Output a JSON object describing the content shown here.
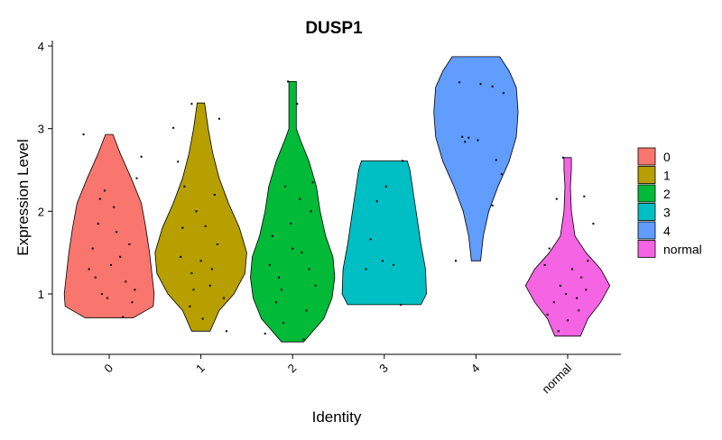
{
  "chart_data": {
    "type": "violin",
    "title": "DUSP1",
    "xlabel": "Identity",
    "ylabel": "Expression Level",
    "ylim": [
      0.25,
      4.1
    ],
    "yticks": [
      1,
      2,
      3,
      4
    ],
    "categories": [
      "0",
      "1",
      "2",
      "3",
      "4",
      "normal"
    ],
    "legend": {
      "position": "right",
      "entries": [
        "0",
        "1",
        "2",
        "3",
        "4",
        "normal"
      ]
    },
    "colors": [
      "#F8766D",
      "#B79F00",
      "#00BA38",
      "#00BFC4",
      "#619CFF",
      "#F564E3"
    ],
    "series": [
      {
        "category": "0",
        "ymin": 0.71,
        "ymax": 2.93,
        "density": [
          [
            0.71,
            0.26
          ],
          [
            0.85,
            0.48
          ],
          [
            1.0,
            0.49
          ],
          [
            1.2,
            0.47
          ],
          [
            1.5,
            0.44
          ],
          [
            1.8,
            0.4
          ],
          [
            2.1,
            0.35
          ],
          [
            2.4,
            0.24
          ],
          [
            2.7,
            0.12
          ],
          [
            2.93,
            0.04
          ]
        ],
        "points": [
          [
            0.72,
            2.93
          ],
          [
            0.88,
            1.85
          ],
          [
            0.82,
            1.55
          ],
          [
            0.95,
            2.25
          ],
          [
            1.05,
            2.05
          ],
          [
            1.12,
            1.45
          ],
          [
            1.18,
            1.15
          ],
          [
            0.78,
            1.3
          ],
          [
            0.92,
            1.0
          ],
          [
            1.25,
            0.9
          ],
          [
            1.3,
            2.4
          ],
          [
            1.35,
            2.66
          ],
          [
            1.22,
            1.6
          ],
          [
            1.08,
            1.75
          ],
          [
            0.98,
            0.95
          ],
          [
            0.85,
            1.2
          ],
          [
            1.15,
            0.72
          ],
          [
            0.9,
            2.15
          ],
          [
            1.02,
            1.35
          ],
          [
            1.28,
            1.05
          ]
        ]
      },
      {
        "category": "1",
        "ymin": 0.55,
        "ymax": 3.31,
        "density": [
          [
            0.55,
            0.1
          ],
          [
            0.8,
            0.2
          ],
          [
            1.0,
            0.36
          ],
          [
            1.25,
            0.48
          ],
          [
            1.5,
            0.5
          ],
          [
            1.8,
            0.42
          ],
          [
            2.1,
            0.3
          ],
          [
            2.4,
            0.2
          ],
          [
            2.7,
            0.13
          ],
          [
            3.0,
            0.08
          ],
          [
            3.31,
            0.04
          ]
        ],
        "points": [
          [
            1.7,
            3.01
          ],
          [
            1.9,
            3.3
          ],
          [
            2.2,
            3.12
          ],
          [
            1.82,
            2.3
          ],
          [
            1.95,
            2.0
          ],
          [
            2.05,
            1.82
          ],
          [
            2.18,
            1.6
          ],
          [
            1.78,
            1.45
          ],
          [
            1.9,
            1.25
          ],
          [
            2.1,
            1.1
          ],
          [
            2.25,
            0.95
          ],
          [
            1.88,
            0.85
          ],
          [
            2.02,
            0.7
          ],
          [
            2.28,
            0.55
          ],
          [
            1.8,
            1.8
          ],
          [
            2.15,
            2.2
          ],
          [
            1.75,
            2.6
          ],
          [
            2.0,
            1.4
          ],
          [
            2.12,
            1.3
          ],
          [
            1.92,
            1.05
          ]
        ]
      },
      {
        "category": "2",
        "ymin": 0.42,
        "ymax": 3.57,
        "density": [
          [
            0.42,
            0.12
          ],
          [
            0.7,
            0.34
          ],
          [
            0.95,
            0.43
          ],
          [
            1.2,
            0.46
          ],
          [
            1.45,
            0.44
          ],
          [
            1.7,
            0.36
          ],
          [
            2.0,
            0.3
          ],
          [
            2.3,
            0.26
          ],
          [
            2.6,
            0.18
          ],
          [
            2.85,
            0.09
          ],
          [
            3.0,
            0.04
          ],
          [
            3.57,
            0.04
          ]
        ],
        "points": [
          [
            2.95,
            3.57
          ],
          [
            3.05,
            3.3
          ],
          [
            2.7,
            0.52
          ],
          [
            2.85,
            1.2
          ],
          [
            3.1,
            1.5
          ],
          [
            3.2,
            2.0
          ],
          [
            2.78,
            1.7
          ],
          [
            2.92,
            2.3
          ],
          [
            3.15,
            0.8
          ],
          [
            3.25,
            1.1
          ],
          [
            2.82,
            0.9
          ],
          [
            3.0,
            1.55
          ],
          [
            3.08,
            2.15
          ],
          [
            2.75,
            1.35
          ],
          [
            3.22,
            2.35
          ],
          [
            2.9,
            0.65
          ],
          [
            3.12,
            0.45
          ],
          [
            2.98,
            1.85
          ],
          [
            3.18,
            1.3
          ],
          [
            2.88,
            1.05
          ]
        ]
      },
      {
        "category": "3",
        "ymin": 0.87,
        "ymax": 2.61,
        "density": [
          [
            0.87,
            0.4
          ],
          [
            1.0,
            0.46
          ],
          [
            1.3,
            0.45
          ],
          [
            1.6,
            0.4
          ],
          [
            1.9,
            0.36
          ],
          [
            2.2,
            0.32
          ],
          [
            2.5,
            0.28
          ],
          [
            2.61,
            0.25
          ]
        ],
        "points": [
          [
            4.2,
            2.61
          ],
          [
            3.92,
            2.12
          ],
          [
            3.85,
            1.66
          ],
          [
            3.98,
            1.4
          ],
          [
            4.1,
            1.35
          ],
          [
            3.8,
            1.3
          ],
          [
            4.18,
            0.87
          ],
          [
            4.02,
            2.3
          ]
        ]
      },
      {
        "category": "4",
        "ymin": 1.4,
        "ymax": 3.87,
        "density": [
          [
            1.4,
            0.05
          ],
          [
            1.7,
            0.08
          ],
          [
            2.0,
            0.14
          ],
          [
            2.3,
            0.24
          ],
          [
            2.6,
            0.36
          ],
          [
            2.9,
            0.44
          ],
          [
            3.2,
            0.46
          ],
          [
            3.5,
            0.44
          ],
          [
            3.7,
            0.36
          ],
          [
            3.87,
            0.26
          ]
        ],
        "points": [
          [
            4.82,
            3.56
          ],
          [
            5.05,
            3.54
          ],
          [
            5.18,
            3.51
          ],
          [
            5.3,
            3.43
          ],
          [
            4.85,
            2.9
          ],
          [
            4.92,
            2.89
          ],
          [
            5.02,
            2.86
          ],
          [
            5.22,
            2.62
          ],
          [
            5.28,
            2.45
          ],
          [
            5.18,
            2.07
          ],
          [
            4.78,
            1.4
          ],
          [
            4.88,
            2.84
          ]
        ]
      },
      {
        "category": "normal",
        "ymin": 0.49,
        "ymax": 2.65,
        "density": [
          [
            0.49,
            0.14
          ],
          [
            0.7,
            0.22
          ],
          [
            0.9,
            0.36
          ],
          [
            1.1,
            0.46
          ],
          [
            1.3,
            0.36
          ],
          [
            1.5,
            0.2
          ],
          [
            1.7,
            0.08
          ],
          [
            2.0,
            0.04
          ],
          [
            2.3,
            0.03
          ],
          [
            2.5,
            0.04
          ],
          [
            2.65,
            0.04
          ]
        ],
        "points": [
          [
            5.95,
            2.65
          ],
          [
            5.88,
            2.15
          ],
          [
            6.18,
            2.18
          ],
          [
            6.28,
            1.85
          ],
          [
            5.8,
            1.55
          ],
          [
            5.75,
            1.35
          ],
          [
            6.05,
            1.3
          ],
          [
            6.15,
            1.2
          ],
          [
            5.92,
            1.1
          ],
          [
            6.2,
            1.05
          ],
          [
            5.85,
            0.9
          ],
          [
            6.1,
            0.95
          ],
          [
            5.78,
            0.75
          ],
          [
            6.0,
            0.68
          ],
          [
            5.9,
            0.55
          ],
          [
            6.22,
            1.4
          ],
          [
            5.98,
            1.0
          ],
          [
            6.12,
            0.8
          ]
        ]
      }
    ]
  }
}
